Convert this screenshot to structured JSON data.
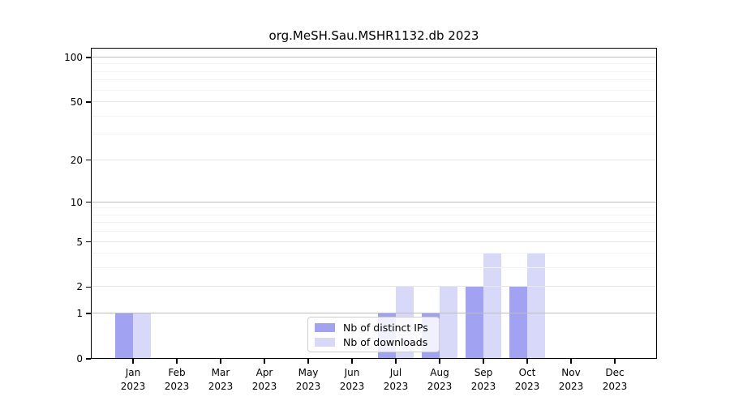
{
  "figure": {
    "background": "#ffffff"
  },
  "chart_data": {
    "type": "bar",
    "title": "org.MeSH.Sau.MSHR1132.db 2023",
    "categories": [
      {
        "month": "Jan",
        "year": "2023"
      },
      {
        "month": "Feb",
        "year": "2023"
      },
      {
        "month": "Mar",
        "year": "2023"
      },
      {
        "month": "Apr",
        "year": "2023"
      },
      {
        "month": "May",
        "year": "2023"
      },
      {
        "month": "Jun",
        "year": "2023"
      },
      {
        "month": "Jul",
        "year": "2023"
      },
      {
        "month": "Aug",
        "year": "2023"
      },
      {
        "month": "Sep",
        "year": "2023"
      },
      {
        "month": "Oct",
        "year": "2023"
      },
      {
        "month": "Nov",
        "year": "2023"
      },
      {
        "month": "Dec",
        "year": "2023"
      }
    ],
    "series": [
      {
        "name": "Nb of distinct IPs",
        "color": "#a2a2f2",
        "values": [
          1,
          0,
          0,
          0,
          0,
          0,
          1,
          1,
          2,
          2,
          0,
          0
        ]
      },
      {
        "name": "Nb of downloads",
        "color": "#d8d8f8",
        "values": [
          1,
          0,
          0,
          0,
          0,
          0,
          2,
          2,
          4,
          4,
          0,
          0
        ]
      }
    ],
    "xlabel": "",
    "ylabel": "",
    "yscale": "log1p",
    "ylim": [
      0,
      119
    ],
    "y_ticks_major": [
      0,
      1,
      2,
      5,
      10,
      20,
      50,
      100
    ],
    "y_ticks_decade": [
      1,
      10,
      100
    ],
    "y_ticks_minor": [
      3,
      4,
      6,
      7,
      8,
      9,
      30,
      40,
      60,
      70,
      80,
      90
    ],
    "grid": true,
    "legend_position": "lower center"
  },
  "colors": {
    "grid_decade": "#bdbdbd",
    "grid_major": "#e7e7e7",
    "grid_minor": "#f3f3f3",
    "axis": "#000000",
    "legend_border": "#cfcfcf",
    "text": "#000000"
  }
}
